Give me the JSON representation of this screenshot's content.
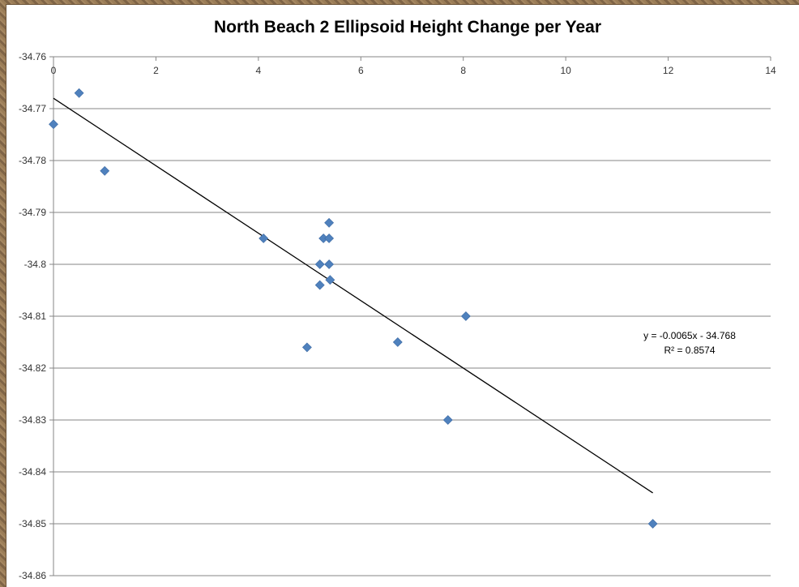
{
  "chart_data": {
    "type": "scatter",
    "title": "North Beach 2 Ellipsoid Height Change per Year",
    "xlabel": "",
    "ylabel": "",
    "xlim": [
      0,
      14
    ],
    "ylim": [
      -34.86,
      -34.76
    ],
    "x_ticks": [
      "0",
      "2",
      "4",
      "6",
      "8",
      "10",
      "12",
      "14"
    ],
    "y_ticks": [
      "-34.76",
      "-34.77",
      "-34.78",
      "-34.79",
      "-34.8",
      "-34.81",
      "-34.82",
      "-34.83",
      "-34.84",
      "-34.85",
      "-34.86"
    ],
    "grid": {
      "horizontal": true,
      "vertical": false
    },
    "legend": "none",
    "series": [
      {
        "color": "#4f81bd",
        "marker": "diamond",
        "points": [
          {
            "x": 0.0,
            "y": -34.773
          },
          {
            "x": 0.5,
            "y": -34.767
          },
          {
            "x": 1.0,
            "y": -34.782
          },
          {
            "x": 4.1,
            "y": -34.795
          },
          {
            "x": 4.95,
            "y": -34.816
          },
          {
            "x": 5.2,
            "y": -34.8
          },
          {
            "x": 5.2,
            "y": -34.804
          },
          {
            "x": 5.27,
            "y": -34.795
          },
          {
            "x": 5.38,
            "y": -34.792
          },
          {
            "x": 5.38,
            "y": -34.795
          },
          {
            "x": 5.38,
            "y": -34.8
          },
          {
            "x": 5.4,
            "y": -34.803
          },
          {
            "x": 6.72,
            "y": -34.815
          },
          {
            "x": 7.7,
            "y": -34.83
          },
          {
            "x": 8.05,
            "y": -34.81
          },
          {
            "x": 11.7,
            "y": -34.85
          }
        ]
      }
    ],
    "trendline": {
      "color": "#000000",
      "x_start": 0.0,
      "x_end": 11.7,
      "slope": -0.0065,
      "intercept": -34.768,
      "equation_label": "y = -0.0065x - 34.768",
      "r2_label": "R² = 0.8574"
    }
  }
}
